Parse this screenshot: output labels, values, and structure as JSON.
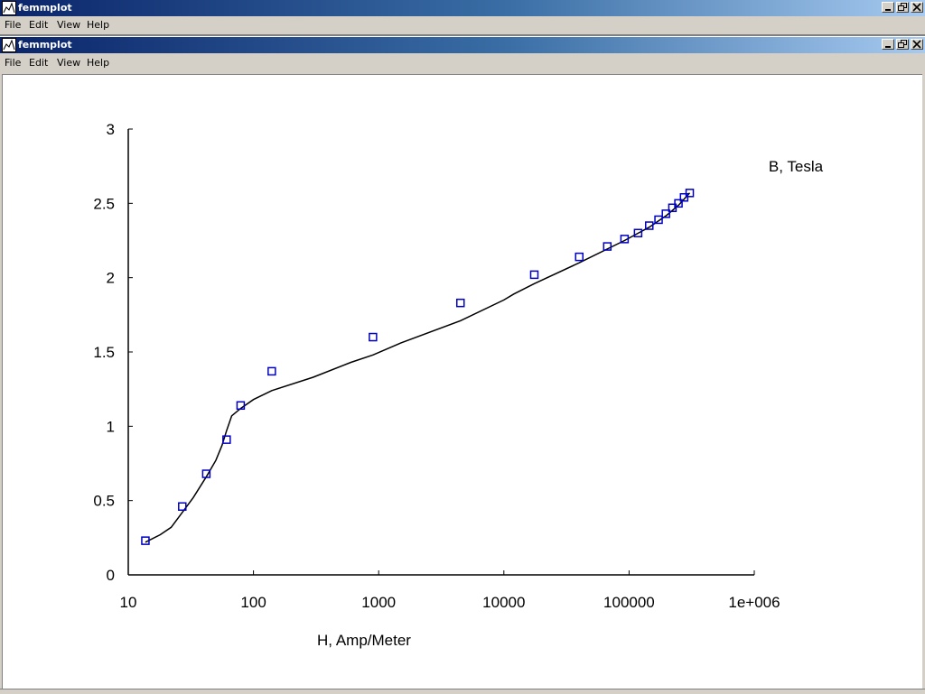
{
  "outer_window": {
    "title": "femmplot",
    "menu": [
      "File",
      "Edit",
      "View",
      "Help"
    ]
  },
  "inner_window": {
    "title": "femmplot",
    "menu": [
      "File",
      "Edit",
      "View",
      "Help"
    ]
  },
  "icons": [
    "femm-app-icon",
    "minimize-icon",
    "restore-icon",
    "close-icon"
  ],
  "colors": {
    "marker": "#0000c0",
    "curve": "#000000",
    "titlebar_start": "#0a246a",
    "titlebar_end": "#a6caf0"
  },
  "chart_data": {
    "type": "scatter",
    "title": "",
    "xlabel": "H, Amp/Meter",
    "ylabel": "B, Tesla",
    "x_scale": "log",
    "xlim": [
      10,
      1000000
    ],
    "ylim": [
      0,
      3
    ],
    "x_ticks": [
      "10",
      "100",
      "1000",
      "10000",
      "100000",
      "1e+006"
    ],
    "y_ticks": [
      "0",
      "0.5",
      "1",
      "1.5",
      "2",
      "2.5",
      "3"
    ],
    "grid": false,
    "series": [
      {
        "role": "measured-points",
        "marker": "square",
        "points": [
          [
            13.7,
            0.23
          ],
          [
            27,
            0.46
          ],
          [
            42,
            0.68
          ],
          [
            61,
            0.91
          ],
          [
            79,
            1.14
          ],
          [
            140,
            1.37
          ],
          [
            900,
            1.6
          ],
          [
            4500,
            1.83
          ],
          [
            17500,
            2.02
          ],
          [
            40000,
            2.14
          ],
          [
            67000,
            2.21
          ],
          [
            92000,
            2.26
          ],
          [
            118000,
            2.3
          ],
          [
            145000,
            2.35
          ],
          [
            172000,
            2.39
          ],
          [
            197000,
            2.43
          ],
          [
            222000,
            2.47
          ],
          [
            248000,
            2.5
          ],
          [
            275000,
            2.54
          ],
          [
            305000,
            2.57
          ]
        ]
      },
      {
        "role": "fitted-curve",
        "marker": "none",
        "points": [
          [
            13.7,
            0.22
          ],
          [
            18,
            0.27
          ],
          [
            22,
            0.32
          ],
          [
            27,
            0.42
          ],
          [
            33,
            0.52
          ],
          [
            42,
            0.66
          ],
          [
            50,
            0.77
          ],
          [
            56,
            0.87
          ],
          [
            61,
            0.97
          ],
          [
            67,
            1.07
          ],
          [
            79,
            1.12
          ],
          [
            100,
            1.18
          ],
          [
            140,
            1.24
          ],
          [
            300,
            1.33
          ],
          [
            600,
            1.43
          ],
          [
            900,
            1.48
          ],
          [
            1500,
            1.56
          ],
          [
            4500,
            1.71
          ],
          [
            10000,
            1.85
          ],
          [
            12000,
            1.89
          ],
          [
            17500,
            1.96
          ],
          [
            40000,
            2.1
          ],
          [
            92000,
            2.25
          ],
          [
            145000,
            2.34
          ],
          [
            200000,
            2.42
          ],
          [
            250000,
            2.49
          ],
          [
            305000,
            2.57
          ]
        ]
      }
    ]
  }
}
